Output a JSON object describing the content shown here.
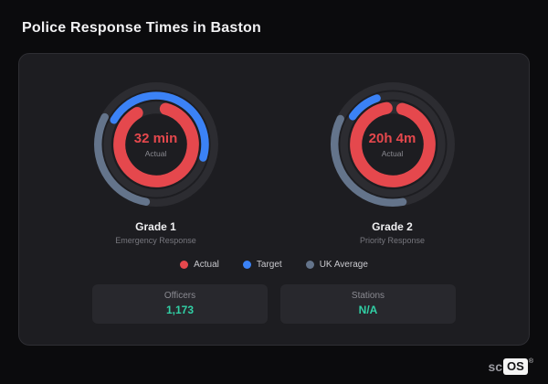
{
  "page": {
    "title": "Police Response Times in Baston"
  },
  "chart_data": {
    "type": "gauge",
    "title": "Police Response Times in Baston",
    "legend": [
      "Actual",
      "Target",
      "UK Average"
    ],
    "gauges": [
      {
        "name": "Grade 1",
        "subtitle": "Emergency Response",
        "actual": "32 min",
        "series": [
          {
            "name": "Actual",
            "approx_fraction": 0.87
          },
          {
            "name": "Target",
            "approx_fraction": 0.46
          },
          {
            "name": "UK Average",
            "approx_fraction": 0.3
          }
        ]
      },
      {
        "name": "Grade 2",
        "subtitle": "Priority Response",
        "actual": "20h 4m",
        "series": [
          {
            "name": "Actual",
            "approx_fraction": 0.93
          },
          {
            "name": "Target",
            "approx_fraction": 0.1
          },
          {
            "name": "UK Average",
            "approx_fraction": 0.35
          }
        ]
      }
    ],
    "stats": {
      "Officers": "1,173",
      "Stations": "N/A"
    }
  },
  "gauges": [
    {
      "value": "32 min",
      "value_label": "Actual",
      "title": "Grade 1",
      "subtitle": "Emergency Response",
      "rings": [
        {
          "name": "uk-average",
          "color": "#64748b",
          "frac": 0.3,
          "start": 190
        },
        {
          "name": "target",
          "color": "#3b82f6",
          "frac": 0.46,
          "start": -60
        },
        {
          "name": "actual",
          "color": "#e5484d",
          "frac": 0.87,
          "start": 15
        }
      ]
    },
    {
      "value": "20h 4m",
      "value_label": "Actual",
      "title": "Grade 2",
      "subtitle": "Priority Response",
      "rings": [
        {
          "name": "uk-average",
          "color": "#64748b",
          "frac": 0.35,
          "start": 170
        },
        {
          "name": "target",
          "color": "#3b82f6",
          "frac": 0.1,
          "start": -55
        },
        {
          "name": "actual",
          "color": "#e5484d",
          "frac": 0.93,
          "start": 15
        }
      ]
    }
  ],
  "legend": [
    {
      "label": "Actual",
      "color": "#e5484d"
    },
    {
      "label": "Target",
      "color": "#3b82f6"
    },
    {
      "label": "UK Average",
      "color": "#64748b"
    }
  ],
  "stats": [
    {
      "label": "Officers",
      "value": "1,173"
    },
    {
      "label": "Stations",
      "value": "N/A"
    }
  ],
  "watermark": {
    "prefix": "sc",
    "suffix": "OS",
    "reg": "®"
  }
}
